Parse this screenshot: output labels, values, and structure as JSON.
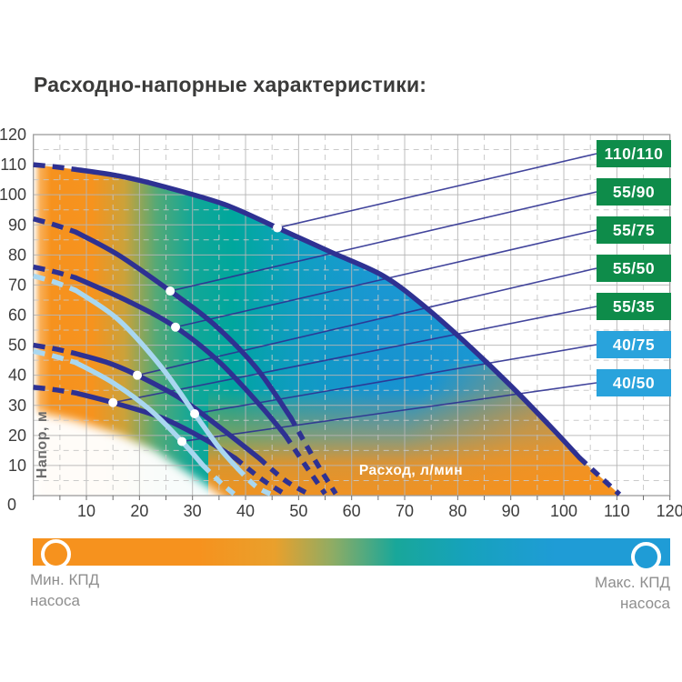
{
  "title": "Расходно-напорные характеристики:",
  "colors": {
    "curve_dark": "#2E3192",
    "curve_light": "#A9D7F0",
    "badge_green": "#0E8C4A",
    "badge_blue": "#29A3DC",
    "efficiency_min": "#F6921E",
    "efficiency_mid": "#00A79D",
    "efficiency_max": "#1F9CD6",
    "grid_major": "#B5B5B5",
    "grid_minor": "#C6C6C6",
    "tick_text": "#3C3C3C"
  },
  "chart_data": {
    "type": "line",
    "title": "Расходно-напорные характеристики",
    "xlabel": "Расход, л/мин",
    "ylabel": "Напор, м",
    "xlim": [
      0,
      120
    ],
    "ylim": [
      0,
      120
    ],
    "x_ticks": [
      10,
      20,
      30,
      40,
      50,
      60,
      70,
      80,
      90,
      100,
      110,
      120
    ],
    "y_ticks": [
      10,
      20,
      30,
      40,
      50,
      60,
      70,
      80,
      90,
      100,
      110,
      120
    ],
    "origin_label": "0",
    "grid": "major solid every 10, minor dashed every 5",
    "legend_position": "right edge, stacked badges",
    "series": [
      {
        "label": "110/110",
        "badge_color": "#0E8C4A",
        "line_color": "#2E3192",
        "dash_start_pts": [
          [
            0,
            110
          ],
          [
            4,
            109.3
          ],
          [
            8,
            108.4
          ]
        ],
        "solid_pts": [
          [
            8,
            108.4
          ],
          [
            16,
            106.3
          ],
          [
            24,
            103
          ],
          [
            36,
            96.8
          ],
          [
            46,
            89
          ],
          [
            56,
            81
          ],
          [
            66,
            73
          ],
          [
            74,
            62.5
          ],
          [
            82,
            50
          ],
          [
            90,
            36.5
          ],
          [
            98,
            22
          ],
          [
            103,
            12.5
          ]
        ],
        "dash_end_pts": [
          [
            103,
            12.5
          ],
          [
            107,
            6
          ],
          [
            110.5,
            0.4
          ]
        ],
        "callout_point": [
          46,
          89
        ]
      },
      {
        "label": "55/90",
        "badge_color": "#0E8C4A",
        "line_color": "#2E3192",
        "dash_start_pts": [
          [
            0,
            92
          ],
          [
            4,
            90
          ],
          [
            8,
            87.6
          ]
        ],
        "solid_pts": [
          [
            8,
            87.6
          ],
          [
            16,
            80
          ],
          [
            25.8,
            68
          ],
          [
            34,
            57
          ],
          [
            42,
            42.5
          ],
          [
            48.5,
            26
          ]
        ],
        "dash_end_pts": [
          [
            48.5,
            26
          ],
          [
            53,
            12
          ],
          [
            57,
            0.6
          ]
        ],
        "callout_point": [
          25.8,
          68
        ]
      },
      {
        "label": "55/75",
        "badge_color": "#0E8C4A",
        "line_color": "#2E3192",
        "dash_start_pts": [
          [
            0,
            76
          ],
          [
            4,
            74.4
          ],
          [
            8,
            72.4
          ]
        ],
        "solid_pts": [
          [
            8,
            72.4
          ],
          [
            18,
            64.5
          ],
          [
            26.8,
            56
          ],
          [
            35,
            44.5
          ],
          [
            43,
            29.5
          ],
          [
            47.5,
            20
          ]
        ],
        "dash_end_pts": [
          [
            47.5,
            20
          ],
          [
            51.5,
            9.5
          ],
          [
            55,
            0.6
          ]
        ],
        "callout_point": [
          26.8,
          56
        ]
      },
      {
        "label": "55/50",
        "badge_color": "#0E8C4A",
        "line_color": "#2E3192",
        "dash_start_pts": [
          [
            0,
            50
          ],
          [
            4,
            48.8
          ],
          [
            8,
            47.2
          ]
        ],
        "solid_pts": [
          [
            8,
            47.2
          ],
          [
            14,
            44.2
          ],
          [
            19.6,
            40
          ],
          [
            28,
            32
          ],
          [
            36,
            21.5
          ],
          [
            42.5,
            12.5
          ]
        ],
        "dash_end_pts": [
          [
            42.5,
            12.5
          ],
          [
            47.5,
            5
          ],
          [
            52,
            0.4
          ]
        ],
        "callout_point": [
          19.6,
          40
        ]
      },
      {
        "label": "55/35",
        "badge_color": "#0E8C4A",
        "line_color": "#2E3192",
        "dash_start_pts": [
          [
            0,
            36
          ],
          [
            4,
            35.2
          ],
          [
            8,
            34.1
          ]
        ],
        "solid_pts": [
          [
            8,
            34.1
          ],
          [
            15,
            30.9
          ],
          [
            24,
            26
          ],
          [
            32,
            19
          ],
          [
            38,
            12.5
          ]
        ],
        "dash_end_pts": [
          [
            38,
            12.5
          ],
          [
            43,
            5.5
          ],
          [
            47.5,
            0.4
          ]
        ],
        "callout_point": [
          15,
          30.9
        ]
      },
      {
        "label": "40/75",
        "badge_color": "#29A3DC",
        "line_color": "#A9D7F0",
        "dash_start_pts": [
          [
            0,
            73
          ],
          [
            4,
            71
          ],
          [
            8,
            68.2
          ]
        ],
        "solid_pts": [
          [
            8,
            68.2
          ],
          [
            16,
            58.5
          ],
          [
            24,
            43
          ],
          [
            30.4,
            27.2
          ],
          [
            35,
            16
          ],
          [
            38.5,
            9
          ]
        ],
        "dash_end_pts": [
          [
            38.5,
            9
          ],
          [
            42,
            3
          ],
          [
            45,
            0.3
          ]
        ],
        "callout_point": [
          30.4,
          27.2
        ]
      },
      {
        "label": "40/50",
        "badge_color": "#29A3DC",
        "line_color": "#A9D7F0",
        "dash_start_pts": [
          [
            0,
            48
          ],
          [
            4,
            46.3
          ],
          [
            8,
            44.2
          ]
        ],
        "solid_pts": [
          [
            8,
            44.2
          ],
          [
            15,
            37.5
          ],
          [
            22,
            28.5
          ],
          [
            28,
            18
          ],
          [
            32,
            10
          ]
        ],
        "dash_end_pts": [
          [
            32,
            10
          ],
          [
            35.5,
            4
          ],
          [
            38,
            0.3
          ]
        ],
        "callout_point": [
          28,
          18
        ]
      }
    ],
    "envelope_top": [
      [
        0,
        110
      ],
      [
        8,
        108.4
      ],
      [
        16,
        106.3
      ],
      [
        24,
        103
      ],
      [
        36,
        96.8
      ],
      [
        46,
        89
      ],
      [
        56,
        81
      ],
      [
        66,
        73
      ],
      [
        74,
        62.5
      ],
      [
        82,
        50
      ],
      [
        90,
        36.5
      ],
      [
        98,
        22
      ],
      [
        103,
        12.5
      ],
      [
        107,
        6
      ],
      [
        110.5,
        0.3
      ]
    ],
    "white_fade_wedge": [
      [
        -2,
        29
      ],
      [
        8,
        25
      ],
      [
        16,
        20.5
      ],
      [
        23,
        15
      ],
      [
        28,
        9
      ],
      [
        33,
        3
      ],
      [
        37,
        -2
      ],
      [
        37,
        -8
      ],
      [
        -2,
        -8
      ]
    ]
  },
  "efficiency_bar": {
    "min_line1": "Мин. КПД",
    "min_line2": "насоса",
    "max_line1": "Макс. КПД",
    "max_line2": "насоса"
  }
}
